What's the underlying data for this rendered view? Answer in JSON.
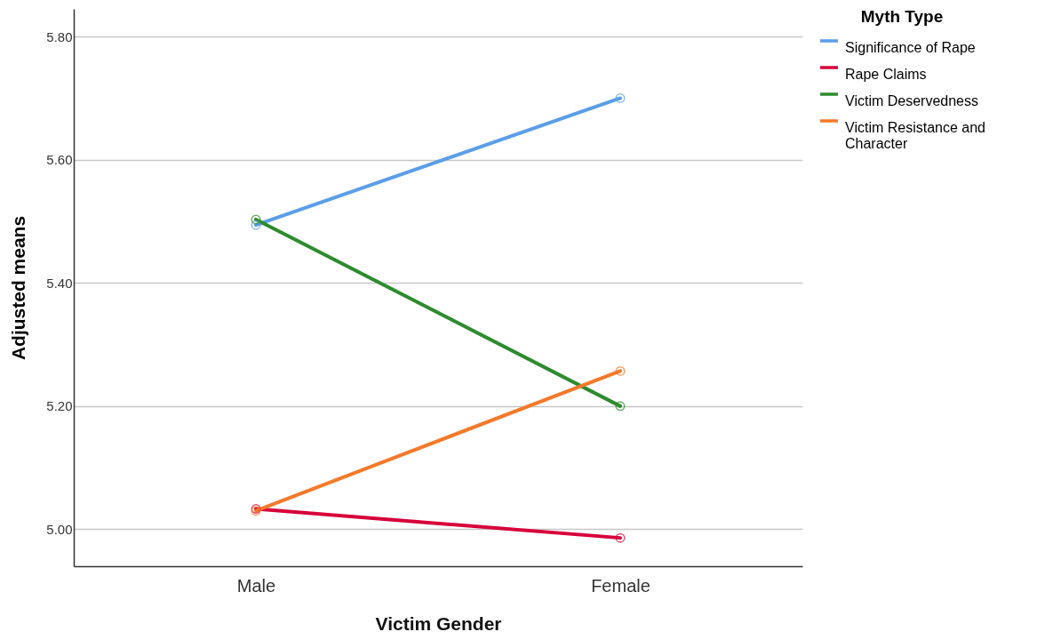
{
  "chart_data": {
    "type": "line",
    "xlabel": "Victim Gender",
    "ylabel": "Adjusted means",
    "legend_title": "Myth Type",
    "categories": [
      "Male",
      "Female"
    ],
    "series": [
      {
        "name": "Significance of Rape",
        "color": "#5b9ee9",
        "values": [
          5.494,
          5.7
        ]
      },
      {
        "name": "Rape Claims",
        "color": "#d7003a",
        "values": [
          5.033,
          4.986
        ]
      },
      {
        "name": "Victim Deservedness",
        "color": "#2e8b2e",
        "values": [
          5.503,
          5.2
        ]
      },
      {
        "name": "Victim Resistance and Character",
        "color": "#f5792a",
        "values": [
          5.03,
          5.257
        ]
      }
    ],
    "ylim": [
      4.94,
      5.845
    ],
    "yticks": [
      {
        "value": 5,
        "label": "5.00"
      },
      {
        "value": 5.2,
        "label": "5.20"
      },
      {
        "value": 5.4,
        "label": "5.40"
      },
      {
        "value": 5.6,
        "label": "5.60"
      },
      {
        "value": 5.8,
        "label": "5.80"
      }
    ],
    "grid": "y",
    "legend": "top right",
    "marker": "circle",
    "line_style": "solid"
  }
}
